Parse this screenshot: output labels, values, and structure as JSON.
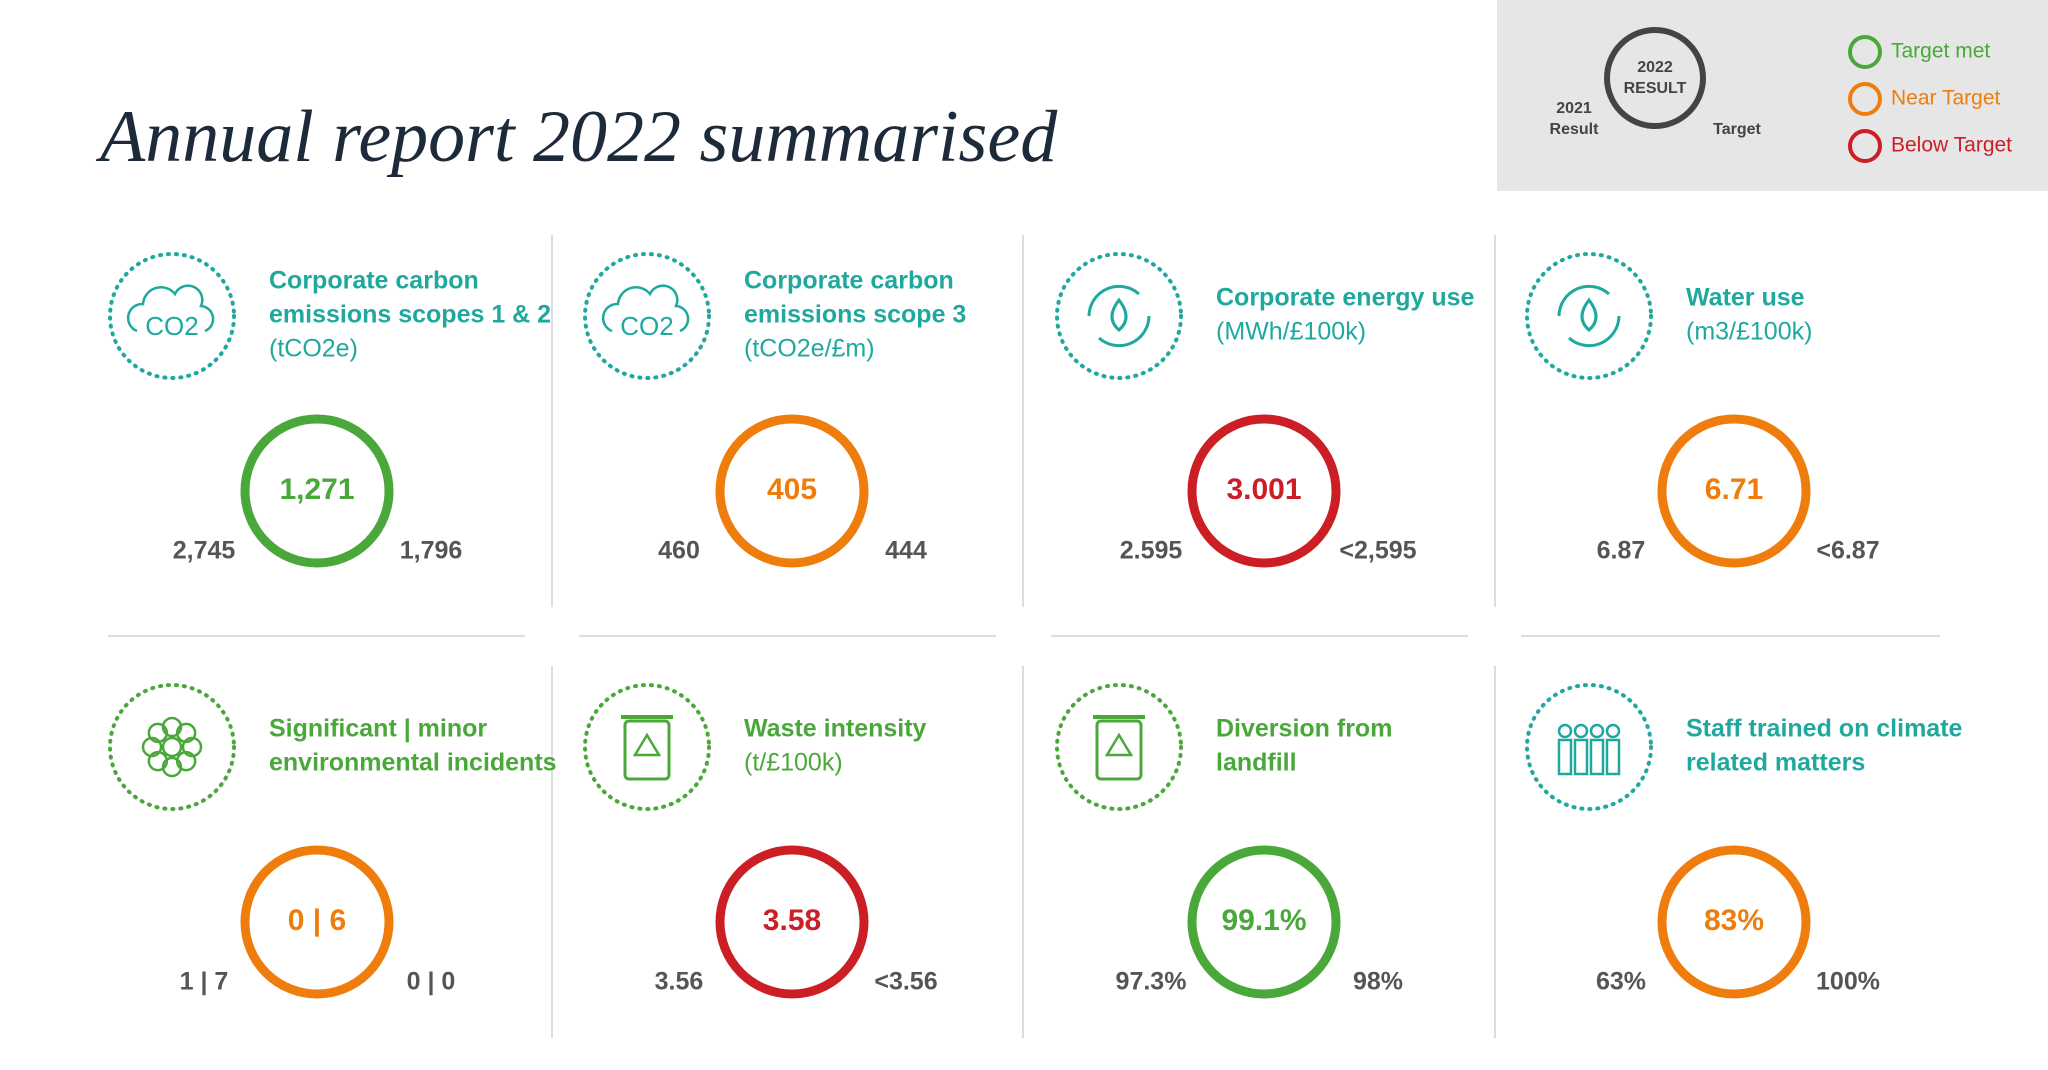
{
  "header": {
    "title": "Annual report 2022 summarised"
  },
  "legend": {
    "ring_label": [
      "2022",
      "RESULT"
    ],
    "left_label": [
      "2021",
      "Result"
    ],
    "right_label": "Target",
    "items": [
      {
        "label": "Target met",
        "color": "#4aa83a"
      },
      {
        "label": "Near Target",
        "color": "#ef7d0d"
      },
      {
        "label": "Below Target",
        "color": "#cc1e25"
      }
    ]
  },
  "cards": [
    {
      "title_lines": [
        "Corporate carbon",
        "emissions scopes 1 & 2"
      ],
      "unit": "(tCO2e)",
      "icon_text": "CO2",
      "title_color": "#1fa99e",
      "result": "1,271",
      "previous": "2,745",
      "target": "1,796",
      "ring_color": "#4aa83a"
    },
    {
      "title_lines": [
        "Corporate carbon",
        "emissions scope 3"
      ],
      "unit": "(tCO2e/£m)",
      "icon_text": "CO2",
      "title_color": "#1fa99e",
      "result": "405",
      "previous": "460",
      "target": "444",
      "ring_color": "#ef7d0d"
    },
    {
      "title_lines": [
        "Corporate energy use"
      ],
      "unit": "(MWh/£100k)",
      "title_color": "#1fa99e",
      "result": "3.001",
      "previous": "2.595",
      "target": "<2,595",
      "ring_color": "#cc1e25"
    },
    {
      "title_lines": [
        "Water use"
      ],
      "unit": "(m3/£100k)",
      "title_color": "#1fa99e",
      "result": "6.71",
      "previous": "6.87",
      "target": "<6.87",
      "ring_color": "#ef7d0d"
    },
    {
      "title_lines": [
        "Significant | minor",
        "environmental incidents"
      ],
      "title_color": "#4aa83a",
      "result": "0 | 6",
      "previous": "1 | 7",
      "target": "0 | 0",
      "ring_color": "#ef7d0d"
    },
    {
      "title_lines": [
        "Waste intensity"
      ],
      "unit": "(t/£100k)",
      "title_color": "#4aa83a",
      "result": "3.58",
      "previous": "3.56",
      "target": "<3.56",
      "ring_color": "#cc1e25"
    },
    {
      "title_lines": [
        "Diversion from",
        "landfill"
      ],
      "title_color": "#4aa83a",
      "result": "99.1%",
      "previous": "97.3%",
      "target": "98%",
      "ring_color": "#4aa83a"
    },
    {
      "title_lines": [
        "Staff trained on climate",
        "related matters"
      ],
      "title_color": "#1fa99e",
      "result": "83%",
      "previous": "63%",
      "target": "100%",
      "ring_color": "#ef7d0d"
    }
  ]
}
